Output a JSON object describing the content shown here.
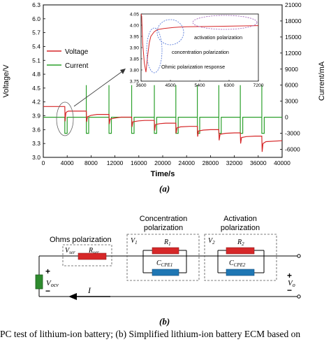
{
  "figure_a": {
    "label": "(a)",
    "chart_data": {
      "type": "line",
      "xlabel": "Time/s",
      "ylabel_left": "Voltage/V",
      "ylabel_right": "Current/mA",
      "xlim": [
        0,
        40000
      ],
      "ylim_left": [
        3.0,
        6.3
      ],
      "ylim_right": [
        -7500,
        21000
      ],
      "x_ticks": [
        "0",
        "4000",
        "8000",
        "12000",
        "16000",
        "20000",
        "24000",
        "28000",
        "32000",
        "36000",
        "40000"
      ],
      "y_ticks_left": [
        "3.0",
        "3.3",
        "3.6",
        "3.9",
        "4.2",
        "4.5",
        "4.8",
        "5.1",
        "5.4",
        "5.7",
        "6.0",
        "6.3"
      ],
      "y_ticks_right": [
        "-6000",
        "-3000",
        "0",
        "3000",
        "6000",
        "9000",
        "12000",
        "15000",
        "18000",
        "21000"
      ],
      "legend": [
        "Voltage",
        "Current"
      ],
      "legend_position": "left",
      "series": [
        {
          "name": "Voltage",
          "color": "#d62728",
          "x": [
            0,
            3600,
            3650,
            3750,
            3800,
            4000,
            4200,
            4400,
            4800,
            7200,
            7250,
            7400,
            8000,
            9000,
            11000,
            11050,
            11200,
            12000,
            13000,
            14800,
            14850,
            15000,
            16000,
            17000,
            18600,
            18650,
            18800,
            19500,
            20500,
            22200,
            22250,
            22400,
            23000,
            24500,
            25800,
            25850,
            26000,
            26800,
            28000,
            29400,
            29450,
            29600,
            30500,
            32000,
            33000,
            33050,
            33200,
            34000,
            35500,
            36600,
            36650,
            36800,
            37300,
            40000
          ],
          "y": [
            4.1,
            4.1,
            3.78,
            3.93,
            3.97,
            3.99,
            4.0,
            4.0,
            4.0,
            4.0,
            3.77,
            3.88,
            3.91,
            3.93,
            3.93,
            3.72,
            3.83,
            3.85,
            3.87,
            3.87,
            3.66,
            3.77,
            3.79,
            3.8,
            3.8,
            3.58,
            3.71,
            3.73,
            3.74,
            3.74,
            3.52,
            3.64,
            3.66,
            3.67,
            3.67,
            3.45,
            3.57,
            3.59,
            3.6,
            3.6,
            3.37,
            3.5,
            3.52,
            3.53,
            3.53,
            3.3,
            3.43,
            3.45,
            3.46,
            3.46,
            3.12,
            3.3,
            3.34,
            3.36
          ]
        },
        {
          "name": "Current",
          "color": "#2ca02c",
          "x": [
            0,
            3600,
            3600,
            4000,
            4000,
            7200,
            7200,
            7600,
            7600,
            11000,
            11000,
            11400,
            11400,
            14800,
            14800,
            15200,
            15200,
            18600,
            18600,
            19000,
            19000,
            22200,
            22200,
            22600,
            22600,
            25800,
            25800,
            26200,
            26200,
            29400,
            29400,
            29800,
            29800,
            33000,
            33000,
            33400,
            33400,
            36600,
            36600,
            37000,
            37000,
            40000
          ],
          "y": [
            0,
            0,
            -3000,
            -3000,
            0,
            0,
            -3000,
            -3000,
            0,
            0,
            -3000,
            -3000,
            0,
            0,
            -3000,
            -3000,
            0,
            0,
            -3000,
            -3000,
            0,
            0,
            -3000,
            -3000,
            0,
            0,
            -3000,
            -3000,
            0,
            0,
            -3000,
            -3000,
            0,
            0,
            -3000,
            -3000,
            0,
            0,
            -3000,
            -3000,
            0,
            0
          ]
        }
      ],
      "current_spikes_x": [
        7200,
        11000,
        14800,
        18600,
        22200,
        25800,
        29400,
        33000,
        36600
      ],
      "current_spike_value": 6000
    },
    "inset": {
      "xlim": [
        3600,
        7200
      ],
      "ylim": [
        3.75,
        4.05
      ],
      "x_ticks": [
        "3600",
        "4500",
        "5400",
        "6300",
        "7200"
      ],
      "y_ticks": [
        "3.75",
        "3.80",
        "3.85",
        "3.90",
        "3.95",
        "4.00",
        "4.05"
      ],
      "annotations": {
        "activation": "activation polarization",
        "concentration": "concentration polarization",
        "ohmic": "Ohmic polarization response"
      },
      "voltage_x": [
        3600,
        3620,
        3650,
        3700,
        3750,
        3800,
        3850,
        3900,
        4000,
        4100,
        4300,
        4600,
        5000,
        6000,
        7200
      ],
      "voltage_y": [
        4.05,
        4.04,
        3.92,
        3.83,
        3.79,
        3.86,
        3.92,
        3.95,
        3.97,
        3.98,
        3.985,
        3.99,
        3.993,
        3.995,
        3.998
      ]
    }
  },
  "figure_b": {
    "label": "(b)",
    "ohms_label": "Ohms polarization",
    "concentration_label_1": "Concentration",
    "concentration_label_2": "polarization",
    "activation_label_1": "Activation",
    "activation_label_2": "polarization",
    "v_ser": "V",
    "v_ser_sub": "ser",
    "r_ser": "R",
    "r_ser_sub": "ser",
    "v1": "V",
    "v1_sub": "1",
    "r1": "R",
    "r1_sub": "1",
    "cpe1": "C",
    "cpe1_sub": "CPE1",
    "v2": "V",
    "v2_sub": "2",
    "r2": "R",
    "r2_sub": "2",
    "cpe2": "C",
    "cpe2_sub": "CPE2",
    "vocv": "V",
    "vocv_sub": "ocv",
    "vo": "V",
    "vo_sub": "o",
    "current_label": "I",
    "plus": "+",
    "minus": "−",
    "colors": {
      "resistor": "#d62728",
      "capacitor": "#1f77b4",
      "source": "#2e8b2e"
    }
  },
  "caption": "PC test of lithium-ion battery; (b) Simplified lithium-ion battery ECM based on"
}
